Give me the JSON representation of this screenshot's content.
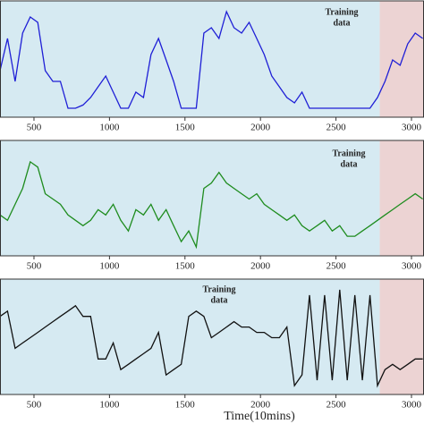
{
  "chart_data": [
    {
      "type": "line",
      "xlim": [
        275,
        3083
      ],
      "ylim": [
        0,
        1
      ],
      "xticks": [
        500,
        1000,
        1500,
        2000,
        2500,
        3000
      ],
      "training_end": 2790,
      "annotation": [
        "Training",
        "data"
      ],
      "x": [
        275,
        325,
        375,
        425,
        475,
        525,
        575,
        625,
        675,
        725,
        775,
        825,
        875,
        925,
        975,
        1025,
        1075,
        1125,
        1175,
        1225,
        1275,
        1325,
        1375,
        1425,
        1475,
        1525,
        1575,
        1625,
        1675,
        1725,
        1775,
        1825,
        1875,
        1925,
        1975,
        2025,
        2075,
        2125,
        2175,
        2225,
        2275,
        2325,
        2375,
        2425,
        2475,
        2525,
        2575,
        2625,
        2675,
        2725,
        2775,
        2825,
        2875,
        2925,
        2975,
        3025,
        3075
      ],
      "series": [
        {
          "color": "#1f1fd6",
          "values": [
            0.4,
            0.7,
            0.3,
            0.75,
            0.9,
            0.85,
            0.4,
            0.3,
            0.3,
            0.05,
            0.05,
            0.08,
            0.15,
            0.25,
            0.35,
            0.2,
            0.05,
            0.05,
            0.2,
            0.15,
            0.55,
            0.7,
            0.5,
            0.3,
            0.05,
            0.05,
            0.05,
            0.75,
            0.8,
            0.7,
            0.95,
            0.8,
            0.75,
            0.85,
            0.7,
            0.55,
            0.35,
            0.25,
            0.15,
            0.1,
            0.2,
            0.05,
            0.05,
            0.05,
            0.05,
            0.05,
            0.05,
            0.05,
            0.05,
            0.05,
            0.15,
            0.3,
            0.5,
            0.45,
            0.65,
            0.75,
            0.7
          ]
        }
      ]
    },
    {
      "type": "line",
      "xlim": [
        275,
        3083
      ],
      "ylim": [
        0,
        1
      ],
      "xticks": [
        500,
        1000,
        1500,
        2000,
        2500,
        3000
      ],
      "training_end": 2790,
      "annotation": [
        "Training",
        "data"
      ],
      "x": [
        275,
        325,
        375,
        425,
        475,
        525,
        575,
        625,
        675,
        725,
        775,
        825,
        875,
        925,
        975,
        1025,
        1075,
        1125,
        1175,
        1225,
        1275,
        1325,
        1375,
        1425,
        1475,
        1525,
        1575,
        1625,
        1675,
        1725,
        1775,
        1825,
        1875,
        1925,
        1975,
        2025,
        2075,
        2125,
        2175,
        2225,
        2275,
        2325,
        2375,
        2425,
        2475,
        2525,
        2575,
        2625,
        2675,
        2725,
        2775,
        2825,
        2875,
        2925,
        2975,
        3025,
        3075
      ],
      "series": [
        {
          "color": "#1e8c1e",
          "values": [
            0.35,
            0.3,
            0.45,
            0.6,
            0.85,
            0.8,
            0.55,
            0.5,
            0.45,
            0.35,
            0.3,
            0.25,
            0.3,
            0.4,
            0.35,
            0.45,
            0.3,
            0.2,
            0.4,
            0.35,
            0.45,
            0.3,
            0.4,
            0.25,
            0.1,
            0.2,
            0.05,
            0.6,
            0.65,
            0.75,
            0.65,
            0.6,
            0.55,
            0.5,
            0.55,
            0.45,
            0.4,
            0.35,
            0.3,
            0.35,
            0.25,
            0.2,
            0.25,
            0.3,
            0.2,
            0.25,
            0.15,
            0.15,
            0.2,
            0.25,
            0.3,
            0.35,
            0.4,
            0.45,
            0.5,
            0.55,
            0.5
          ]
        }
      ]
    },
    {
      "type": "line",
      "xlim": [
        275,
        3083
      ],
      "ylim": [
        0,
        1
      ],
      "xticks": [
        500,
        1000,
        1500,
        2000,
        2500,
        3000
      ],
      "training_end": 2790,
      "annotation": [
        "Training",
        "data"
      ],
      "xlabel": "Time(10mins)",
      "x": [
        275,
        325,
        375,
        425,
        475,
        525,
        575,
        625,
        675,
        725,
        775,
        825,
        875,
        925,
        975,
        1025,
        1075,
        1125,
        1175,
        1225,
        1275,
        1325,
        1375,
        1425,
        1475,
        1525,
        1575,
        1625,
        1675,
        1725,
        1775,
        1825,
        1875,
        1925,
        1975,
        2025,
        2075,
        2125,
        2175,
        2225,
        2275,
        2325,
        2375,
        2425,
        2475,
        2525,
        2575,
        2625,
        2675,
        2725,
        2775,
        2825,
        2875,
        2925,
        2975,
        3025,
        3075
      ],
      "series": [
        {
          "color": "#111111",
          "values": [
            0.7,
            0.75,
            0.4,
            0.45,
            0.5,
            0.55,
            0.6,
            0.65,
            0.7,
            0.75,
            0.8,
            0.7,
            0.7,
            0.3,
            0.3,
            0.45,
            0.2,
            0.25,
            0.3,
            0.35,
            0.4,
            0.55,
            0.15,
            0.2,
            0.25,
            0.7,
            0.75,
            0.7,
            0.5,
            0.55,
            0.6,
            0.65,
            0.6,
            0.6,
            0.55,
            0.55,
            0.5,
            0.5,
            0.6,
            0.05,
            0.15,
            0.9,
            0.1,
            0.9,
            0.1,
            0.95,
            0.1,
            0.9,
            0.1,
            0.9,
            0.05,
            0.2,
            0.25,
            0.2,
            0.25,
            0.3,
            0.3
          ]
        }
      ]
    }
  ]
}
